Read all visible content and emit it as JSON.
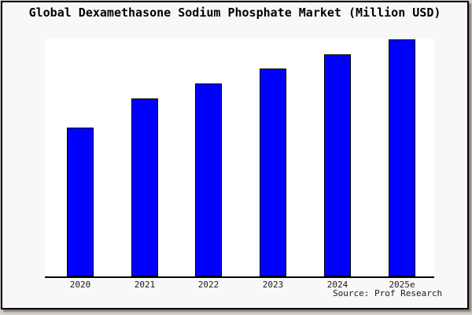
{
  "window": {
    "outer_background": "#d4d0c8",
    "panel_background": "#f8f8f8",
    "panel_border_color": "#000000"
  },
  "header": {
    "title": "Global Dexamethasone Sodium Phosphate Market (Million USD)"
  },
  "footer": {
    "source_note": "Source: Prof Research"
  },
  "chart_data": {
    "type": "bar",
    "title": "Global Dexamethasone Sodium Phosphate Market (Million USD)",
    "unit": "Million USD",
    "categories": [
      "2020",
      "2021",
      "2022",
      "2023",
      "2024",
      "2025e"
    ],
    "values_pct_of_max": [
      62.8,
      75.1,
      81.4,
      87.7,
      93.7,
      100
    ],
    "value_axis": "unlabeled - no y-axis ticks, gridlines, or data labels shown",
    "xlabel": "",
    "ylabel": "",
    "legend": "none",
    "grid": false,
    "bar_color": "#0000ff",
    "bar_border_color": "#000000",
    "plot_background": "#ffffff",
    "axis_line_color": "#000000",
    "source_note": "Source: Prof Research"
  }
}
